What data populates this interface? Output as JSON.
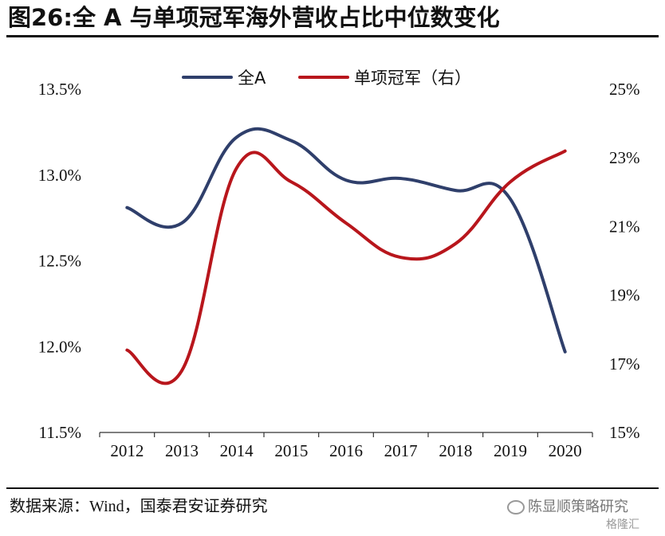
{
  "title": "图26:全 A 与单项冠军海外营收占比中位数变化",
  "source": {
    "prefix": "数据来源：",
    "text": "Wind，国泰君安证券研究"
  },
  "watermark": {
    "account": "陈显顺策略研究",
    "brand": "格隆汇"
  },
  "colors": {
    "all_a": "#2f3f6b",
    "champion": "#b8161c"
  },
  "chart_data": {
    "type": "line",
    "categories": [
      "2012",
      "2013",
      "2014",
      "2015",
      "2016",
      "2017",
      "2018",
      "2019",
      "2020"
    ],
    "series": [
      {
        "name": "全A",
        "axis": "left",
        "values": [
          12.81,
          12.72,
          13.22,
          13.2,
          12.97,
          12.98,
          12.91,
          12.86,
          11.97
        ]
      },
      {
        "name": "单项冠军（右）",
        "axis": "right",
        "values": [
          17.4,
          16.8,
          22.7,
          22.3,
          21.1,
          20.1,
          20.5,
          22.3,
          23.2
        ]
      }
    ],
    "y_left": {
      "ylim": [
        11.5,
        13.5
      ],
      "ticks": [
        11.5,
        12.0,
        12.5,
        13.0,
        13.5
      ],
      "tick_labels": [
        "11.5%",
        "12.0%",
        "12.5%",
        "13.0%",
        "13.5%"
      ]
    },
    "y_right": {
      "ylim": [
        15,
        25
      ],
      "ticks": [
        15,
        17,
        19,
        21,
        23,
        25
      ],
      "tick_labels": [
        "15%",
        "17%",
        "19%",
        "21%",
        "23%",
        "25%"
      ]
    },
    "legend": "top-center",
    "grid": false
  }
}
